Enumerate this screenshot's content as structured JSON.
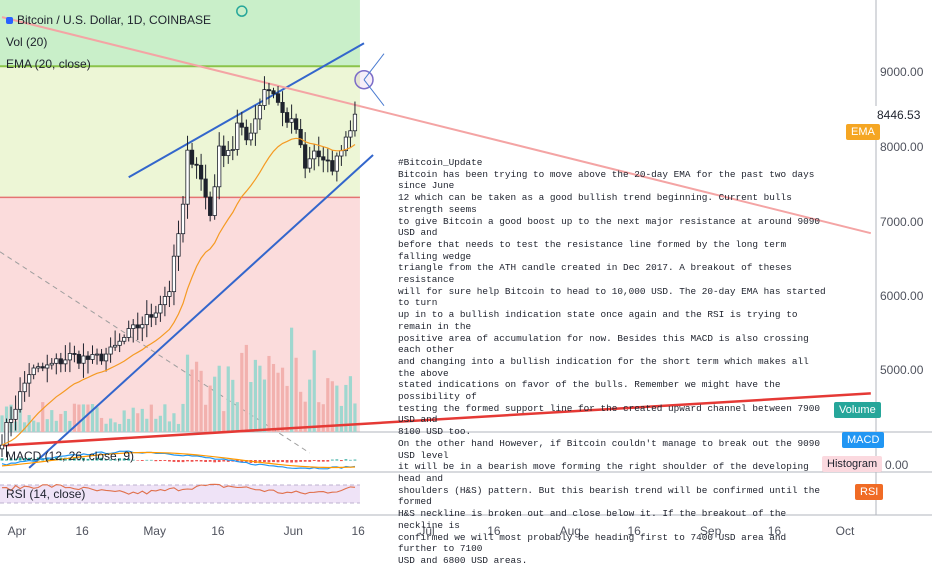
{
  "header": {
    "symbol": "Bitcoin / U.S. Dollar, 1D, COINBASE",
    "vol": "Vol (20)",
    "ema": "EMA (20, close)",
    "macd": "MACD (12, 26, close, 9)",
    "rsi": "RSI (14, close)"
  },
  "price_axis": {
    "ticks": [
      "9000.00",
      "8000.00",
      "7000.00",
      "6000.00",
      "5000.00"
    ],
    "last_price": "8446.53",
    "macd_zero": "0.00"
  },
  "tags": {
    "ema": "EMA",
    "volume": "Volume",
    "macd": "MACD",
    "histogram": "Histogram",
    "rsi": "RSI"
  },
  "time_axis": [
    "Apr",
    "16",
    "May",
    "16",
    "Jun",
    "16",
    "Jul",
    "16",
    "Aug",
    "16",
    "Sep",
    "16",
    "Oct"
  ],
  "colors": {
    "up": "#26a69a",
    "down": "#ef5350",
    "channel": "#3366cc",
    "ema_line": "#f59a23",
    "macd_line": "#2196f3",
    "signal_line": "#ff9800",
    "rsi_line": "#e0704c",
    "resistance": "#f4a4a4",
    "support": "#e53935",
    "ema_tag": "#f5a623",
    "volume_tag": "#26a69a",
    "macd_tag": "#2196f3",
    "histogram_tag": "#fbd9df",
    "rsi_tag": "#f06b25"
  },
  "note": {
    "lines": [
      "#Bitcoin_Update",
      "Bitcoin has been trying to move above the 20-day EMA for the past two days since June",
      "12 which can be taken as a good bullish trend beginning. Current bulls strength seems",
      "to give Bitcoin a good boost up to the next major resistance at around 9090 USD and",
      "before that needs to test the resistance line formed by the long term falling wedge",
      "triangle from the ATH candle created in Dec 2017. A breakout of theses resistance",
      "will for sure help Bitcoin to head to 10,000 USD. The 20-day EMA has started to turn",
      "up in to a bullish indication state once again and the RSI is trying to remain in the",
      "positive area of accumulation for now. Besides this MACD is also crossing each other",
      "and changing into a bullish indication for the short term which makes all the above",
      "stated indications on favor of the bulls. Remember we might have the possibility of",
      "testing the formed support line for the created upward channel between 7900 USD and",
      "8100 USD too.",
      "On the other hand However, if Bitcoin couldn't manage to break out the 9090 USD level",
      "it will be in a bearish move forming the right shoulder of the developing head and",
      "shoulders (H&S) pattern. But this bearish trend will be confirmed until the formed",
      "H&S neckline is broken out and close below it. If the breakout of the neckline is",
      "confirmed we will most probably be heading first to 7400 USD area and further to 7100",
      "USD and 6800 USD areas."
    ]
  },
  "chart_data": {
    "type": "candlestick",
    "title": "Bitcoin / U.S. Dollar, 1D, COINBASE",
    "x_start": "2019-03-29",
    "x_end": "2019-06-15",
    "ylim": [
      4000,
      9500
    ],
    "waypoints": [
      [
        0,
        4090
      ],
      [
        6,
        4980
      ],
      [
        10,
        5050
      ],
      [
        15,
        5200
      ],
      [
        20,
        5150
      ],
      [
        24,
        5250
      ],
      [
        28,
        5500
      ],
      [
        33,
        5750
      ],
      [
        37,
        6100
      ],
      [
        40,
        7200
      ],
      [
        41,
        7900
      ],
      [
        43,
        7800
      ],
      [
        46,
        7100
      ],
      [
        48,
        7950
      ],
      [
        51,
        8000
      ],
      [
        52,
        8300
      ],
      [
        54,
        8100
      ],
      [
        56,
        8400
      ],
      [
        58,
        8800
      ],
      [
        60,
        8750
      ],
      [
        62,
        8450
      ],
      [
        65,
        8250
      ],
      [
        67,
        7700
      ],
      [
        69,
        7950
      ],
      [
        71,
        7800
      ],
      [
        73,
        7700
      ],
      [
        75,
        8000
      ],
      [
        77,
        8250
      ],
      [
        78,
        8447
      ]
    ],
    "levels": {
      "resistance_zone": [
        9090,
        9500
      ],
      "support_zone_top": 7330
    },
    "lines": [
      {
        "name": "channel upper",
        "from": [
          "2019-04-26",
          7600
        ],
        "to": [
          "2019-06-17",
          9400
        ]
      },
      {
        "name": "channel lower",
        "from": [
          "2019-04-04",
          3700
        ],
        "to": [
          "2019-06-19",
          7900
        ]
      },
      {
        "name": "resistance",
        "from": [
          "2019-03-29",
          9750
        ],
        "to": [
          "2019-10-07",
          6850
        ]
      },
      {
        "name": "support",
        "from": [
          "2019-03-29",
          4000
        ],
        "to": [
          "2019-10-07",
          4700
        ]
      }
    ],
    "markers": [
      {
        "date": "2019-06-17",
        "price": 8910
      },
      {
        "date": "2019-05-21",
        "price": 9830
      }
    ],
    "rsi": {
      "range": [
        30,
        70
      ]
    },
    "series": [
      {
        "name": "EMA (20, close)"
      },
      {
        "name": "Vol (20)"
      },
      {
        "name": "MACD (12, 26, close, 9)"
      },
      {
        "name": "RSI (14, close)"
      }
    ]
  }
}
